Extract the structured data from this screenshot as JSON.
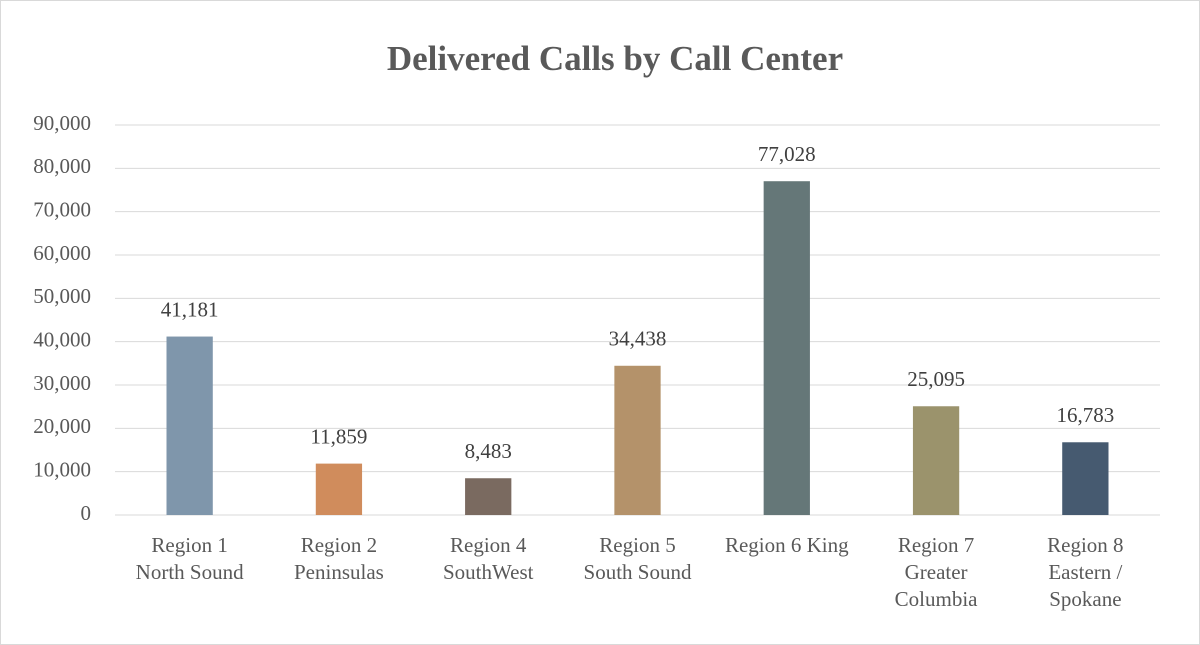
{
  "chart_data": {
    "type": "bar",
    "title": "Delivered Calls by Call Center",
    "categories": [
      [
        "Region 1",
        "North Sound"
      ],
      [
        "Region 2",
        "Peninsulas"
      ],
      [
        "Region 4",
        "SouthWest"
      ],
      [
        "Region 5",
        "South Sound"
      ],
      [
        "Region 6 King"
      ],
      [
        "Region 7",
        "Greater",
        "Columbia"
      ],
      [
        "Region 8",
        "Eastern /",
        "Spokane"
      ]
    ],
    "values": [
      41181,
      11859,
      8483,
      34438,
      77028,
      25095,
      16783
    ],
    "value_labels": [
      "41,181",
      "11,859",
      "8,483",
      "34,438",
      "77,028",
      "25,095",
      "16,783"
    ],
    "colors": [
      "#7f96ab",
      "#d08c5c",
      "#7a6a60",
      "#b4926a",
      "#657778",
      "#9b936c",
      "#465a70"
    ],
    "ylim": [
      0,
      90000
    ],
    "yticks": [
      0,
      {
        "value": 10000,
        "label": "10,000"
      },
      {
        "value": 20000,
        "label": "20,000"
      },
      {
        "value": 30000,
        "label": "30,000"
      },
      {
        "value": 40000,
        "label": "40,000"
      },
      {
        "value": 50000,
        "label": "50,000"
      },
      {
        "value": 60000,
        "label": "60,000"
      },
      {
        "value": 70000,
        "label": "70,000"
      },
      {
        "value": 80000,
        "label": "80,000"
      },
      {
        "value": 90000,
        "label": "90,000"
      }
    ],
    "grid": true
  }
}
